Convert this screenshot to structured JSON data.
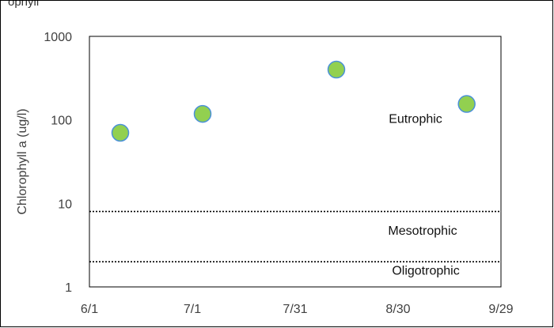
{
  "header": {
    "title_fragment": "ophyll"
  },
  "chart_data": {
    "type": "scatter",
    "title": "",
    "xlabel": "",
    "ylabel": "Chlorophyll a (ug/l)",
    "y_scale": "log",
    "ylim": [
      1,
      1000
    ],
    "xlim": [
      "6/1",
      "9/29"
    ],
    "y_ticks": [
      "1",
      "10",
      "100",
      "1000"
    ],
    "x_ticks": [
      "6/1",
      "7/1",
      "7/31",
      "8/30",
      "9/29"
    ],
    "x_tick_days": [
      0,
      30,
      60,
      90,
      120
    ],
    "points": [
      {
        "x": "6/10",
        "y": 70
      },
      {
        "x": "7/4",
        "y": 118
      },
      {
        "x": "8/12",
        "y": 400
      },
      {
        "x": "9/19",
        "y": 155
      }
    ],
    "reference_lines": [
      {
        "y": 8,
        "style": "dotted"
      },
      {
        "y": 2,
        "style": "dotted"
      }
    ],
    "zone_labels": [
      "Eutrophic",
      "Mesotrophic",
      "Oligotrophic"
    ],
    "marker_color": "#92D050",
    "marker_edge_color": "#4A90D9",
    "grid": false,
    "legend": "none"
  }
}
